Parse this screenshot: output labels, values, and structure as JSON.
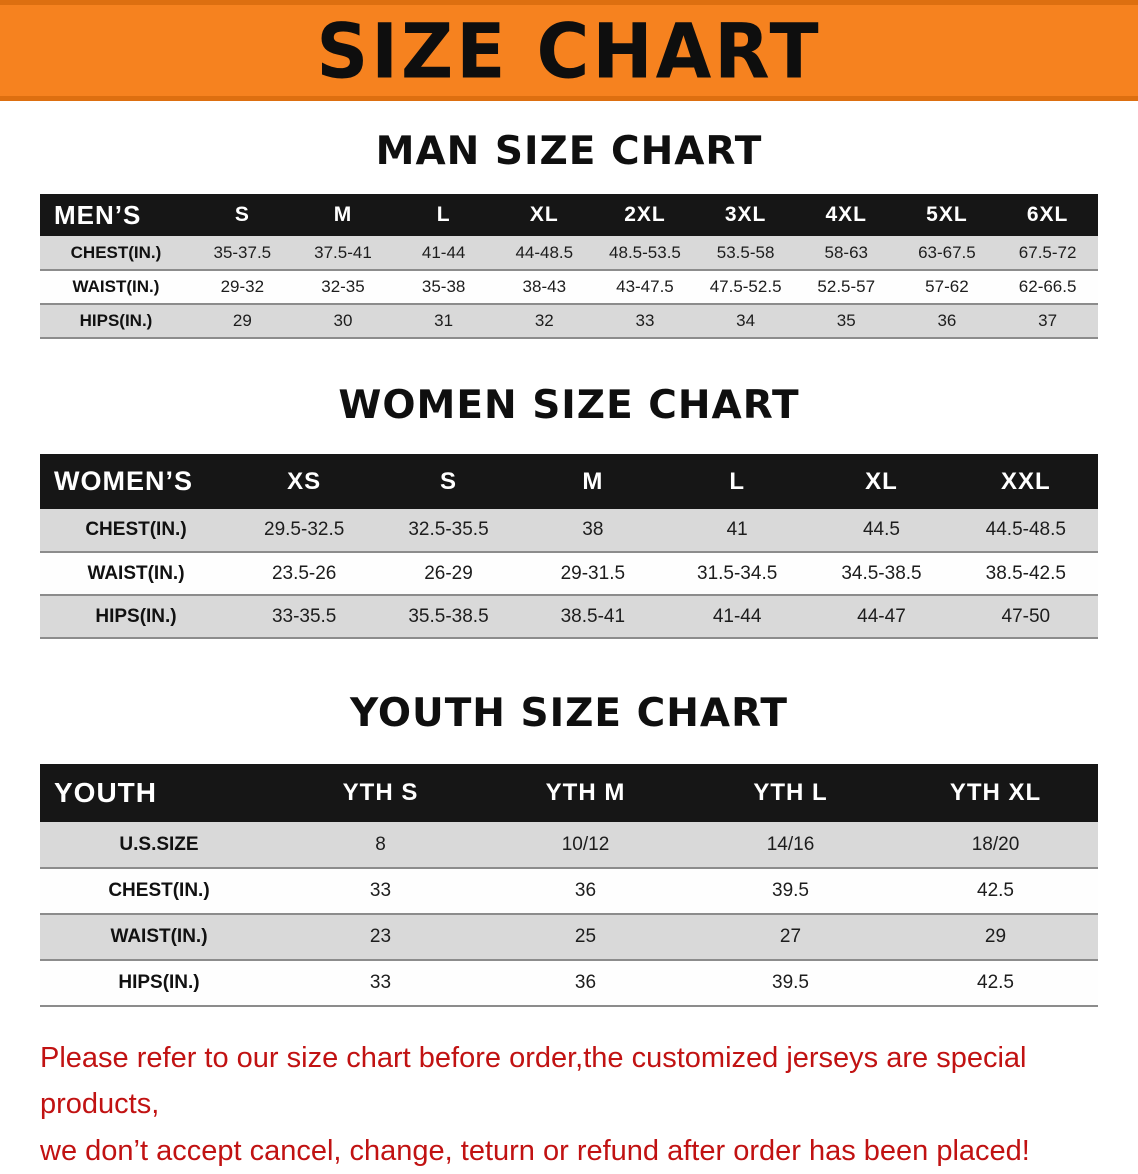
{
  "banner": {
    "title": "SIZE CHART"
  },
  "colors": {
    "banner_bg": "#f6821f",
    "table_header_bg": "#161616",
    "row_shaded": "#d9d9d9",
    "disclaimer_text": "#c11212"
  },
  "sections": [
    {
      "heading": "MAN SIZE CHART",
      "table": {
        "header": [
          "MEN’S",
          "S",
          "M",
          "L",
          "XL",
          "2XL",
          "3XL",
          "4XL",
          "5XL",
          "6XL"
        ],
        "rows": [
          [
            "CHEST(IN.)",
            "35-37.5",
            "37.5-41",
            "41-44",
            "44-48.5",
            "48.5-53.5",
            "53.5-58",
            "58-63",
            "63-67.5",
            "67.5-72"
          ],
          [
            "WAIST(IN.)",
            "29-32",
            "32-35",
            "35-38",
            "38-43",
            "43-47.5",
            "47.5-52.5",
            "52.5-57",
            "57-62",
            "62-66.5"
          ],
          [
            "HIPS(IN.)",
            "29",
            "30",
            "31",
            "32",
            "33",
            "34",
            "35",
            "36",
            "37"
          ]
        ]
      }
    },
    {
      "heading": "WOMEN SIZE CHART",
      "table": {
        "header": [
          "WOMEN’S",
          "XS",
          "S",
          "M",
          "L",
          "XL",
          "XXL"
        ],
        "rows": [
          [
            "CHEST(IN.)",
            "29.5-32.5",
            "32.5-35.5",
            "38",
            "41",
            "44.5",
            "44.5-48.5"
          ],
          [
            "WAIST(IN.)",
            "23.5-26",
            "26-29",
            "29-31.5",
            "31.5-34.5",
            "34.5-38.5",
            "38.5-42.5"
          ],
          [
            "HIPS(IN.)",
            "33-35.5",
            "35.5-38.5",
            "38.5-41",
            "41-44",
            "44-47",
            "47-50"
          ]
        ]
      }
    },
    {
      "heading": "YOUTH SIZE CHART",
      "table": {
        "header": [
          "YOUTH",
          "YTH S",
          "YTH M",
          "YTH L",
          "YTH XL"
        ],
        "rows": [
          [
            "U.S.SIZE",
            "8",
            "10/12",
            "14/16",
            "18/20"
          ],
          [
            "CHEST(IN.)",
            "33",
            "36",
            "39.5",
            "42.5"
          ],
          [
            "WAIST(IN.)",
            "23",
            "25",
            "27",
            "29"
          ],
          [
            "HIPS(IN.)",
            "33",
            "36",
            "39.5",
            "42.5"
          ]
        ]
      }
    }
  ],
  "footer": {
    "line1": "Please refer to our size chart before order,the customized jerseys are special products,",
    "line2": "we don’t accept cancel, change, teturn or refund after order has been placed!"
  }
}
